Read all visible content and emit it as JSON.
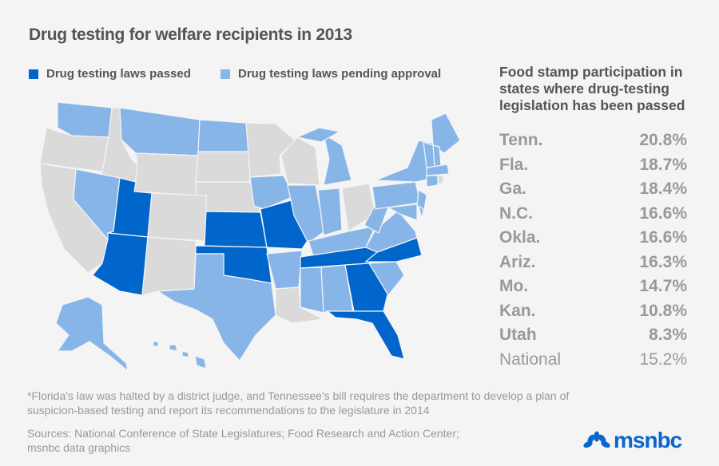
{
  "title": "Drug testing for welfare recipients in 2013",
  "legend": [
    {
      "label": "Drug testing laws passed",
      "color": "#0066cc"
    },
    {
      "label": "Drug testing laws pending approval",
      "color": "#88b5e8"
    }
  ],
  "colors": {
    "passed": "#0066cc",
    "pending": "#88b5e8",
    "none": "#dadada",
    "background": "#f4f4f4"
  },
  "states": {
    "WA": "pending",
    "OR": "none",
    "CA": "none",
    "ID": "none",
    "NV": "pending",
    "MT": "pending",
    "WY": "none",
    "UT": "passed",
    "AZ": "passed",
    "CO": "none",
    "NM": "none",
    "ND": "pending",
    "SD": "none",
    "NE": "none",
    "KS": "passed",
    "OK": "passed",
    "TX": "pending",
    "MN": "none",
    "IA": "pending",
    "MO": "passed",
    "AR": "pending",
    "LA": "none",
    "WI": "none",
    "IL": "pending",
    "MI": "pending",
    "MI_UP": "pending",
    "IN": "pending",
    "OH": "none",
    "KY": "pending",
    "TN": "passed",
    "MS": "pending",
    "AL": "pending",
    "GA": "passed",
    "FL": "passed",
    "SC": "pending",
    "NC": "passed",
    "VA": "pending",
    "WV": "pending",
    "PA": "pending",
    "NY": "pending",
    "NJ": "pending",
    "MD": "pending",
    "DE": "pending",
    "ME": "pending",
    "NH": "pending",
    "VT": "pending",
    "MA": "pending",
    "CT": "pending",
    "RI": "none",
    "AK": "pending",
    "HI": "pending"
  },
  "sidebar": {
    "heading": "Food stamp participation in states where drug-testing legislation has been passed",
    "rows": [
      {
        "state": "Tenn.",
        "value": "20.8%"
      },
      {
        "state": "Fla.",
        "value": "18.7%"
      },
      {
        "state": "Ga.",
        "value": "18.4%"
      },
      {
        "state": "N.C.",
        "value": "16.6%"
      },
      {
        "state": "Okla.",
        "value": "16.6%"
      },
      {
        "state": "Ariz.",
        "value": "16.3%"
      },
      {
        "state": "Mo.",
        "value": "14.7%"
      },
      {
        "state": "Kan.",
        "value": "10.8%"
      },
      {
        "state": "Utah",
        "value": "8.3%"
      }
    ],
    "national": {
      "state": "National",
      "value": "15.2%"
    }
  },
  "footnote": "*Florida's law was halted by a district judge, and Tennessee's bill requires the department to develop a plan of suspicion-based testing and report its recommendations to the legislature in 2014",
  "sources_line1": "Sources: National Conference of State Legislatures; Food Research and Action Center;",
  "sources_line2": "msnbc data graphics",
  "logo": "msnbc"
}
